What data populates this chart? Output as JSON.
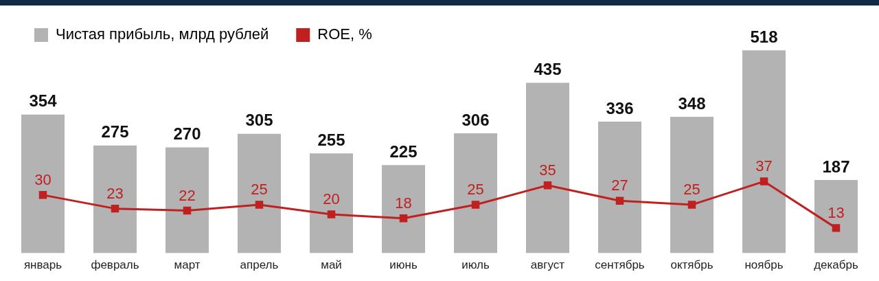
{
  "chart_data": {
    "type": "bar",
    "categories": [
      "январь",
      "февраль",
      "март",
      "апрель",
      "май",
      "июнь",
      "июль",
      "август",
      "сентябрь",
      "октябрь",
      "ноябрь",
      "декабрь"
    ],
    "series": [
      {
        "name": "Чистая прибыль, млрд рублей",
        "color": "#b3b3b3",
        "values": [
          354,
          275,
          270,
          305,
          255,
          225,
          306,
          435,
          336,
          348,
          518,
          187
        ]
      },
      {
        "name": "ROE, %",
        "type": "line",
        "axis": "y2",
        "color": "#c0201f",
        "values": [
          30,
          23,
          22,
          25,
          20,
          18,
          25,
          35,
          27,
          25,
          37,
          13
        ]
      }
    ],
    "ylim": [
      0,
      520
    ],
    "y2lim": [
      0,
      105
    ],
    "data_labels": true,
    "legend": "top left",
    "grid": false,
    "tick_labels": "x",
    "marker": "square",
    "line_style": "solid"
  }
}
